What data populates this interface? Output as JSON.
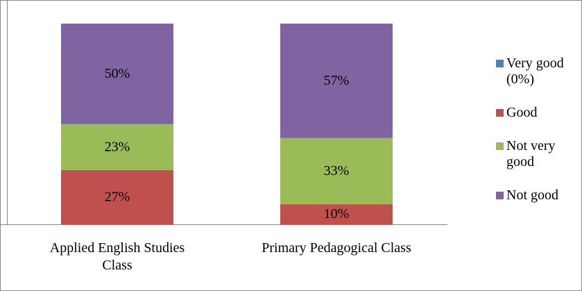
{
  "chart_data": {
    "type": "stacked_bar",
    "categories": [
      "Applied English Studies Class",
      "Primary Pedagogical Class"
    ],
    "series": [
      {
        "name": "Very good (0%)",
        "color": "#4f81bd",
        "values": [
          0,
          0
        ]
      },
      {
        "name": "Good",
        "color": "#c0504d",
        "values": [
          27,
          10
        ],
        "value_labels": [
          "27%",
          "10%"
        ]
      },
      {
        "name": "Not very good",
        "color": "#9bbb59",
        "values": [
          23,
          33
        ],
        "value_labels": [
          "23%",
          "33%"
        ]
      },
      {
        "name": "Not good",
        "color": "#8064a2",
        "values": [
          50,
          57
        ],
        "value_labels": [
          "50%",
          "57%"
        ]
      }
    ],
    "ylim": [
      0,
      100
    ],
    "legend": "right"
  }
}
